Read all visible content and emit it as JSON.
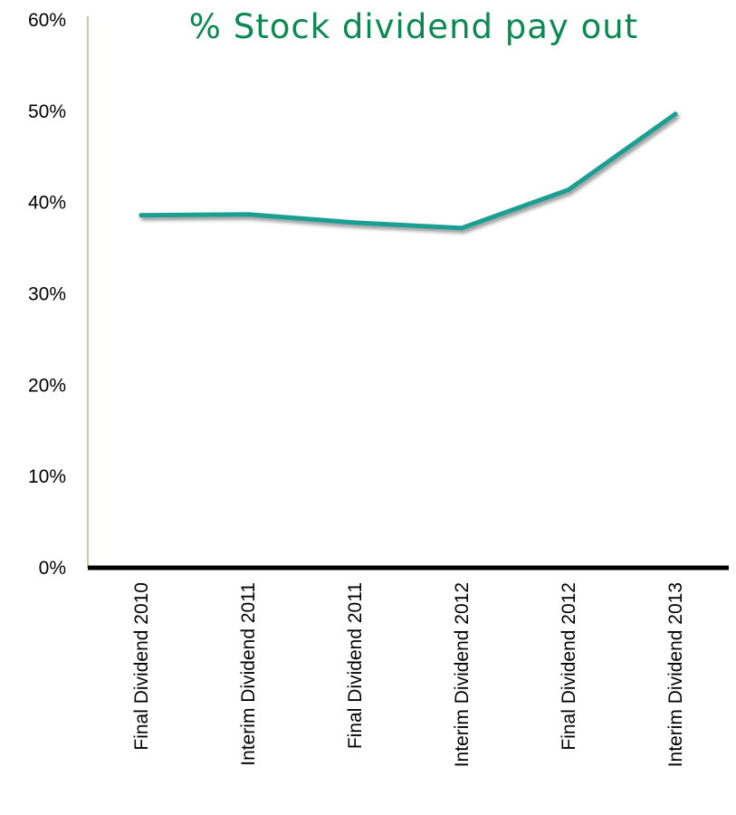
{
  "colors": {
    "title": "#0a8a50",
    "line": "#1a9e93",
    "y_axis": "#9bc48a",
    "x_axis": "#000000"
  },
  "chart_data": {
    "type": "line",
    "title": "% Stock dividend pay out",
    "xlabel": "",
    "ylabel": "",
    "categories": [
      "Final Dividend 2010",
      "Interim Dividend 2011",
      "Final Dividend 2011",
      "Interim Dividend 2012",
      "Final Dividend 2012",
      "Interim Dividend 2013"
    ],
    "series": [
      {
        "values": [
          0.386,
          0.387,
          0.378,
          0.372,
          0.414,
          0.497
        ]
      }
    ],
    "ylim": [
      0,
      0.6
    ],
    "y_ticks": [
      0,
      0.1,
      0.2,
      0.3,
      0.4,
      0.5,
      0.6
    ],
    "y_tick_labels": [
      "0%",
      "10%",
      "20%",
      "30%",
      "40%",
      "50%",
      "60%"
    ],
    "grid": false,
    "legend": "none"
  }
}
